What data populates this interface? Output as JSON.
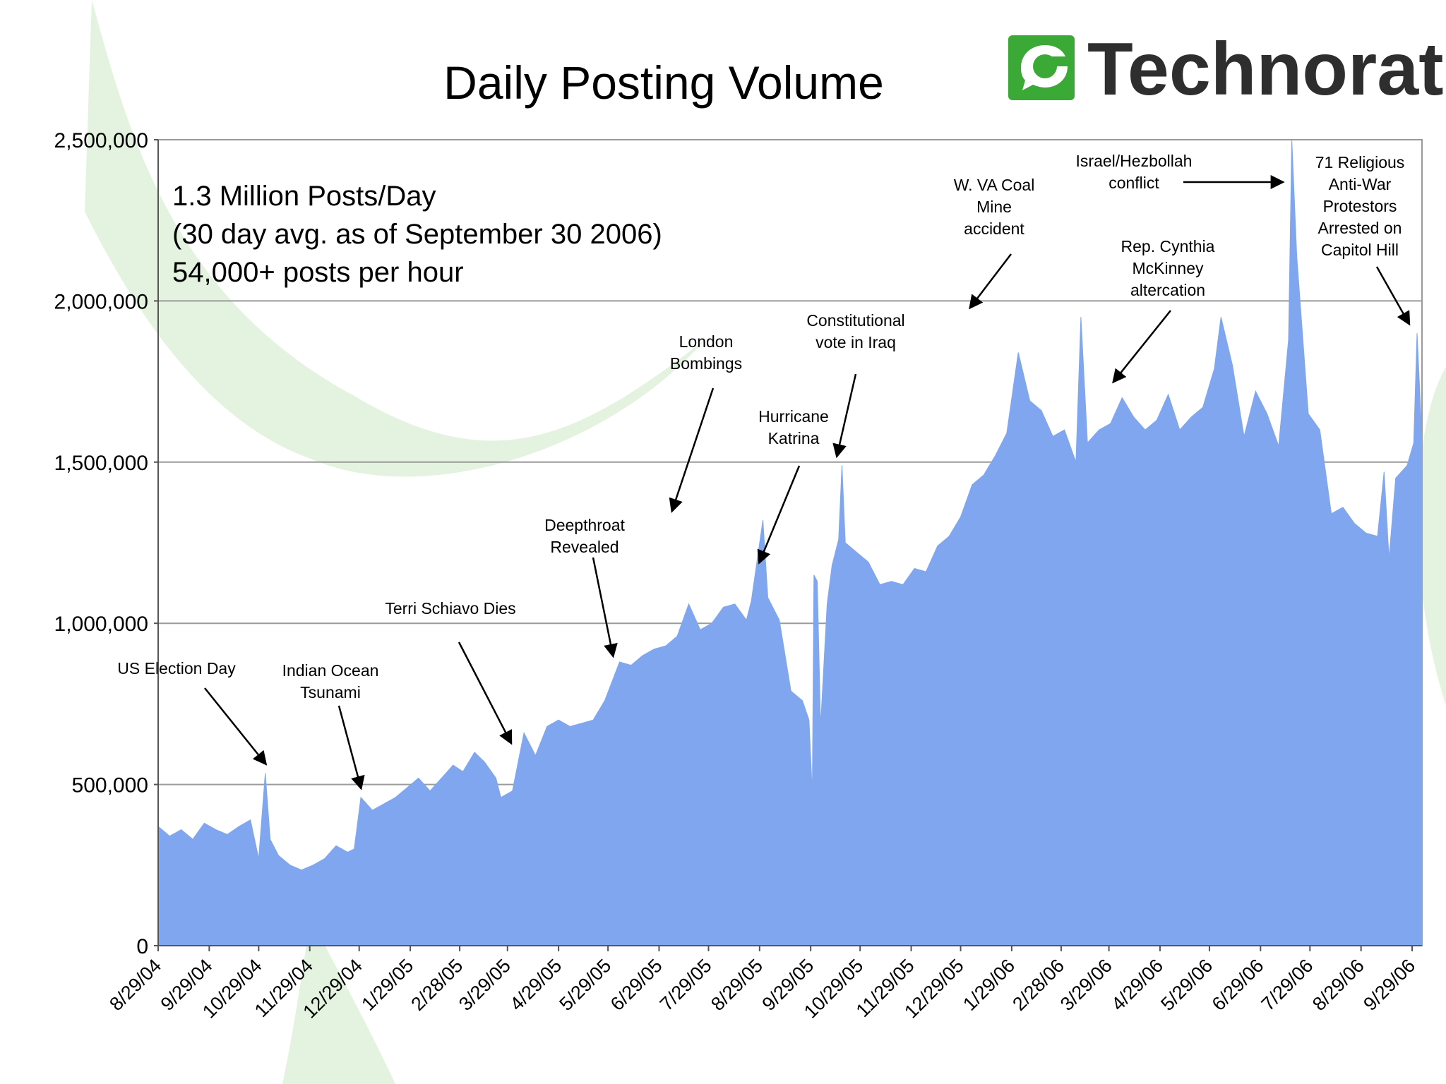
{
  "colors": {
    "bar": "#7fa6ee",
    "logo_green": "#3aa935",
    "swoosh": "#e4f3df",
    "grid": "#9a9a9a"
  },
  "logo": {
    "text": "Technorati",
    "icon": "speech-bubble-icon"
  },
  "info_lines": [
    "1.3 Million Posts/Day",
    "(30 day avg. as of September 30 2006)",
    "54,000+ posts per hour"
  ],
  "chart_data": {
    "type": "area",
    "title": "Daily Posting Volume",
    "xlabel": "",
    "ylabel": "",
    "ylim": [
      0,
      2500000
    ],
    "yticks": [
      {
        "value": 0,
        "label": "0"
      },
      {
        "value": 500000,
        "label": "500,000"
      },
      {
        "value": 1000000,
        "label": "1,000,000"
      },
      {
        "value": 1500000,
        "label": "1,500,000"
      },
      {
        "value": 2000000,
        "label": "2,000,000"
      },
      {
        "value": 2500000,
        "label": "2,500,000"
      }
    ],
    "xlim": [
      "8/29/04",
      "10/5/06"
    ],
    "xticks": [
      "8/29/04",
      "9/29/04",
      "10/29/04",
      "11/29/04",
      "12/29/04",
      "1/29/05",
      "2/28/05",
      "3/29/05",
      "4/29/05",
      "5/29/05",
      "6/29/05",
      "7/29/05",
      "8/29/05",
      "9/29/05",
      "10/29/05",
      "11/29/05",
      "12/29/05",
      "1/29/06",
      "2/28/06",
      "3/29/06",
      "4/29/06",
      "5/29/06",
      "6/29/06",
      "7/29/06",
      "8/29/06",
      "9/29/06"
    ],
    "grid": "horizontal",
    "series": [
      {
        "points": [
          [
            "8/29/04",
            370000
          ],
          [
            "9/5/04",
            340000
          ],
          [
            "9/12/04",
            360000
          ],
          [
            "9/19/04",
            330000
          ],
          [
            "9/26/04",
            380000
          ],
          [
            "10/3/04",
            360000
          ],
          [
            "10/10/04",
            345000
          ],
          [
            "10/17/04",
            370000
          ],
          [
            "10/24/04",
            390000
          ],
          [
            "10/29/04",
            270000
          ],
          [
            "11/2/04",
            535000
          ],
          [
            "11/5/04",
            330000
          ],
          [
            "11/10/04",
            280000
          ],
          [
            "11/17/04",
            250000
          ],
          [
            "11/24/04",
            235000
          ],
          [
            "12/1/04",
            250000
          ],
          [
            "12/8/04",
            270000
          ],
          [
            "12/15/04",
            310000
          ],
          [
            "12/22/04",
            290000
          ],
          [
            "12/26/04",
            300000
          ],
          [
            "12/30/04",
            460000
          ],
          [
            "1/6/05",
            420000
          ],
          [
            "1/13/05",
            440000
          ],
          [
            "1/20/05",
            460000
          ],
          [
            "1/27/05",
            490000
          ],
          [
            "2/3/05",
            520000
          ],
          [
            "2/10/05",
            480000
          ],
          [
            "2/17/05",
            520000
          ],
          [
            "2/24/05",
            560000
          ],
          [
            "3/2/05",
            540000
          ],
          [
            "3/9/05",
            600000
          ],
          [
            "3/15/05",
            570000
          ],
          [
            "3/22/05",
            520000
          ],
          [
            "3/25/05",
            460000
          ],
          [
            "4/1/05",
            480000
          ],
          [
            "4/8/05",
            660000
          ],
          [
            "4/15/05",
            590000
          ],
          [
            "4/22/05",
            680000
          ],
          [
            "4/29/05",
            700000
          ],
          [
            "5/6/05",
            680000
          ],
          [
            "5/13/05",
            690000
          ],
          [
            "5/20/05",
            700000
          ],
          [
            "5/27/05",
            760000
          ],
          [
            "6/2/05",
            840000
          ],
          [
            "6/5/05",
            880000
          ],
          [
            "6/12/05",
            870000
          ],
          [
            "6/19/05",
            900000
          ],
          [
            "6/26/05",
            920000
          ],
          [
            "7/3/05",
            930000
          ],
          [
            "7/10/05",
            960000
          ],
          [
            "7/17/05",
            1060000
          ],
          [
            "7/24/05",
            980000
          ],
          [
            "7/31/05",
            1000000
          ],
          [
            "8/7/05",
            1050000
          ],
          [
            "8/14/05",
            1060000
          ],
          [
            "8/21/05",
            1010000
          ],
          [
            "8/24/05",
            1070000
          ],
          [
            "8/31/05",
            1320000
          ],
          [
            "9/3/05",
            1080000
          ],
          [
            "9/10/05",
            1010000
          ],
          [
            "9/17/05",
            790000
          ],
          [
            "9/24/05",
            760000
          ],
          [
            "9/28/05",
            700000
          ],
          [
            "9/30/05",
            470000
          ],
          [
            "10/1/05",
            1150000
          ],
          [
            "10/3/05",
            1130000
          ],
          [
            "10/5/05",
            680000
          ],
          [
            "10/9/05",
            1060000
          ],
          [
            "10/12/05",
            1180000
          ],
          [
            "10/16/05",
            1260000
          ],
          [
            "10/18/05",
            1490000
          ],
          [
            "10/20/05",
            1250000
          ],
          [
            "10/27/05",
            1220000
          ],
          [
            "11/3/05",
            1190000
          ],
          [
            "11/10/05",
            1120000
          ],
          [
            "11/17/05",
            1130000
          ],
          [
            "11/24/05",
            1120000
          ],
          [
            "12/1/05",
            1170000
          ],
          [
            "12/8/05",
            1160000
          ],
          [
            "12/15/05",
            1240000
          ],
          [
            "12/22/05",
            1270000
          ],
          [
            "12/29/05",
            1330000
          ],
          [
            "1/5/06",
            1430000
          ],
          [
            "1/12/06",
            1460000
          ],
          [
            "1/19/06",
            1520000
          ],
          [
            "1/26/06",
            1590000
          ],
          [
            "2/2/06",
            1840000
          ],
          [
            "2/9/06",
            1690000
          ],
          [
            "2/16/06",
            1660000
          ],
          [
            "2/23/06",
            1580000
          ],
          [
            "3/2/06",
            1600000
          ],
          [
            "3/9/06",
            1500000
          ],
          [
            "3/12/06",
            1950000
          ],
          [
            "3/16/06",
            1560000
          ],
          [
            "3/23/06",
            1600000
          ],
          [
            "3/30/06",
            1620000
          ],
          [
            "4/6/06",
            1700000
          ],
          [
            "4/13/06",
            1640000
          ],
          [
            "4/20/06",
            1600000
          ],
          [
            "4/27/06",
            1630000
          ],
          [
            "5/4/06",
            1710000
          ],
          [
            "5/11/06",
            1600000
          ],
          [
            "5/18/06",
            1640000
          ],
          [
            "5/25/06",
            1670000
          ],
          [
            "6/1/06",
            1790000
          ],
          [
            "6/5/06",
            1950000
          ],
          [
            "6/12/06",
            1800000
          ],
          [
            "6/19/06",
            1580000
          ],
          [
            "6/26/06",
            1720000
          ],
          [
            "7/3/06",
            1650000
          ],
          [
            "7/10/06",
            1550000
          ],
          [
            "7/16/06",
            1880000
          ],
          [
            "7/18/06",
            2500000
          ],
          [
            "7/21/06",
            2140000
          ],
          [
            "7/28/06",
            1650000
          ],
          [
            "8/4/06",
            1600000
          ],
          [
            "8/11/06",
            1340000
          ],
          [
            "8/18/06",
            1360000
          ],
          [
            "8/25/06",
            1310000
          ],
          [
            "9/1/06",
            1280000
          ],
          [
            "9/8/06",
            1270000
          ],
          [
            "9/12/06",
            1470000
          ],
          [
            "9/15/06",
            1200000
          ],
          [
            "9/19/06",
            1450000
          ],
          [
            "9/26/06",
            1490000
          ],
          [
            "9/30/06",
            1560000
          ],
          [
            "10/2/06",
            1900000
          ],
          [
            "10/5/06",
            1570000
          ]
        ]
      }
    ],
    "annotations": [
      {
        "lines": [
          "US Election Day"
        ],
        "date": "11/2/04",
        "value": 535000
      },
      {
        "lines": [
          "Indian Ocean",
          "Tsunami"
        ],
        "date": "12/30/04",
        "value": 460000
      },
      {
        "lines": [
          "Terri Schiavo Dies"
        ],
        "date": "3/31/05",
        "value": 600000
      },
      {
        "lines": [
          "Deepthroat",
          "Revealed"
        ],
        "date": "6/1/05",
        "value": 870000
      },
      {
        "lines": [
          "London",
          "Bombings"
        ],
        "date": "7/7/05",
        "value": 1320000
      },
      {
        "lines": [
          "Hurricane",
          "Katrina"
        ],
        "date": "8/29/05",
        "value": 1160000
      },
      {
        "lines": [
          "Constitutional",
          "vote in Iraq"
        ],
        "date": "10/15/05",
        "value": 1490000
      },
      {
        "lines": [
          "W. VA Coal",
          "Mine",
          "accident"
        ],
        "date": "1/4/06",
        "value": 1950000
      },
      {
        "lines": [
          "Rep. Cynthia",
          "McKinney",
          "altercation"
        ],
        "date": "4/1/06",
        "value": 1720000
      },
      {
        "lines": [
          "Israel/Hezbollah",
          "conflict"
        ],
        "date": "7/18/06",
        "value": 2350000
      },
      {
        "lines": [
          "71 Religious",
          "Anti-War",
          "Protestors",
          "Arrested on",
          "Capitol Hill"
        ],
        "date": "9/27/06",
        "value": 1900000
      }
    ]
  }
}
